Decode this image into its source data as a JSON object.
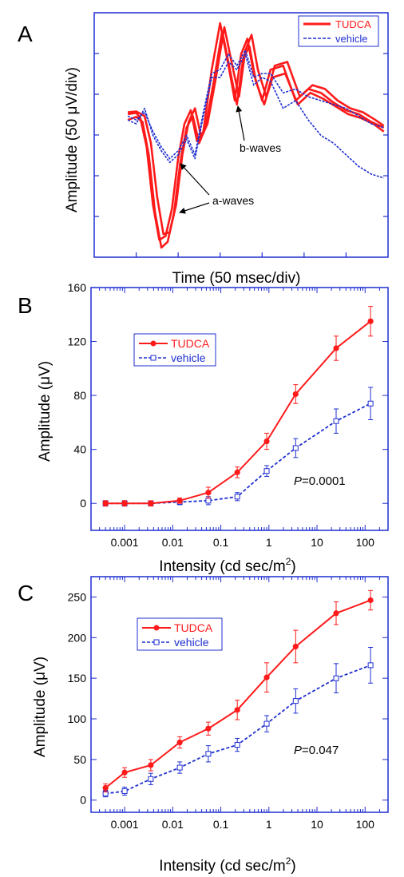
{
  "chart_data": [
    {
      "panel_label": "A",
      "type": "line",
      "xlabel": "Time (50 msec/div)",
      "ylabel": "Amplitude (50 μV/div)",
      "annotations": [
        "b-waves",
        "a-waves"
      ],
      "legend": {
        "placement": "top-right",
        "entries": [
          "TUDCA",
          "vehicle"
        ]
      },
      "colors": {
        "TUDCA": "#ff1a1a",
        "vehicle": "#1f2fd0"
      },
      "x_divisions": 7,
      "y_divisions": 6,
      "series": [
        {
          "name": "TUDCA",
          "style": "solid",
          "traces": [
            {
              "x": [
                0.8,
                1.0,
                1.1,
                1.25,
                1.4,
                1.55,
                1.7,
                1.85,
                2.0,
                2.15,
                2.3,
                2.45,
                2.6,
                2.8,
                3.0,
                3.2,
                3.35,
                3.5,
                3.65,
                3.8,
                4.0,
                4.2,
                4.5,
                4.8,
                5.1,
                5.4,
                5.7,
                6.0,
                6.3,
                6.6,
                6.9
              ],
              "y": [
                0.25,
                0.28,
                0.15,
                -0.6,
                -2.1,
                -3.0,
                -2.9,
                -2.2,
                -0.9,
                0.0,
                0.35,
                -0.45,
                -0.2,
                1.4,
                2.6,
                1.5,
                0.6,
                1.8,
                2.2,
                1.3,
                0.6,
                1.4,
                1.5,
                0.6,
                0.9,
                0.8,
                0.55,
                0.35,
                0.25,
                0.05,
                -0.1
              ]
            },
            {
              "x": [
                0.8,
                1.0,
                1.15,
                1.3,
                1.45,
                1.6,
                1.75,
                1.9,
                2.05,
                2.2,
                2.35,
                2.5,
                2.65,
                2.85,
                3.05,
                3.25,
                3.4,
                3.55,
                3.7,
                3.85,
                4.05,
                4.25,
                4.55,
                4.85,
                5.15,
                5.45,
                5.75,
                6.05,
                6.35,
                6.65,
                6.9
              ],
              "y": [
                0.1,
                0.18,
                0.05,
                -0.8,
                -2.3,
                -3.2,
                -3.05,
                -2.3,
                -1.0,
                -0.1,
                0.2,
                -0.5,
                -0.1,
                1.1,
                2.4,
                1.3,
                0.5,
                1.7,
                2.0,
                1.1,
                0.5,
                1.2,
                1.3,
                0.5,
                0.8,
                0.65,
                0.45,
                0.25,
                0.15,
                0.0,
                -0.2
              ]
            },
            {
              "x": [
                0.8,
                1.0,
                1.2,
                1.35,
                1.5,
                1.65,
                1.8,
                1.95,
                2.1,
                2.25,
                2.4,
                2.55,
                2.7,
                2.9,
                3.1,
                3.3,
                3.45,
                3.6,
                3.75,
                3.9,
                4.1,
                4.3,
                4.6,
                4.9,
                5.2,
                5.5,
                5.8,
                6.1,
                6.4,
                6.7,
                6.9
              ],
              "y": [
                0.3,
                0.32,
                0.2,
                -0.5,
                -1.9,
                -2.85,
                -2.8,
                -2.1,
                -0.8,
                0.05,
                0.4,
                -0.35,
                0.0,
                1.2,
                2.5,
                1.45,
                0.7,
                1.9,
                2.3,
                1.4,
                0.7,
                1.5,
                1.6,
                0.7,
                1.0,
                0.9,
                0.6,
                0.4,
                0.3,
                0.1,
                -0.05
              ]
            }
          ]
        },
        {
          "name": "vehicle",
          "style": "dashed",
          "traces": [
            {
              "x": [
                0.8,
                1.0,
                1.2,
                1.4,
                1.6,
                1.8,
                2.0,
                2.2,
                2.4,
                2.6,
                2.8,
                3.0,
                3.2,
                3.4,
                3.6,
                3.8,
                4.0,
                4.2,
                4.5,
                4.8,
                5.1,
                5.4,
                5.7,
                6.0,
                6.3,
                6.6,
                6.9
              ],
              "y": [
                0.1,
                0.0,
                0.4,
                -0.3,
                -0.7,
                -1.0,
                -0.8,
                -0.4,
                -0.9,
                0.2,
                1.2,
                1.2,
                1.6,
                1.4,
                1.8,
                1.0,
                1.2,
                1.1,
                0.4,
                0.6,
                0.1,
                -0.3,
                -0.5,
                -0.8,
                -1.1,
                -1.3,
                -1.4
              ]
            },
            {
              "x": [
                0.8,
                1.0,
                1.2,
                1.4,
                1.6,
                1.8,
                2.0,
                2.2,
                2.4,
                2.6,
                2.8,
                3.0,
                3.2,
                3.4,
                3.6,
                3.8,
                4.0,
                4.2,
                4.5,
                4.8,
                5.1,
                5.4,
                5.7,
                6.0,
                6.3,
                6.6,
                6.9
              ],
              "y": [
                0.2,
                0.1,
                0.3,
                -0.2,
                -0.6,
                -0.9,
                -0.7,
                -0.3,
                -0.8,
                0.3,
                1.3,
                1.4,
                1.8,
                1.5,
                1.9,
                1.2,
                1.3,
                1.3,
                0.8,
                0.9,
                0.7,
                0.6,
                0.5,
                0.4,
                0.2,
                0.0,
                -0.1
              ]
            }
          ]
        }
      ]
    },
    {
      "panel_label": "B",
      "type": "line",
      "xlabel": "Intensity (cd sec/m",
      "xlabel_superscript": "2",
      "xlabel_suffix": ")",
      "ylabel": "Amplitude (μV)",
      "x_scale": "log",
      "xlim": [
        0.0002,
        300
      ],
      "ylim": [
        -20,
        160
      ],
      "xtick_values": [
        0.001,
        0.01,
        0.1,
        1,
        10,
        100
      ],
      "xtick_labels": [
        "0.001",
        "0.01",
        "0.1",
        "1",
        "10",
        "100"
      ],
      "ytick_values": [
        0,
        40,
        80,
        120,
        160
      ],
      "ytick_labels": [
        "0",
        "40",
        "80",
        "120",
        "160"
      ],
      "legend": {
        "placement": "upper-left",
        "entries": [
          "TUDCA",
          "vehicle"
        ]
      },
      "annotation_italic": "P",
      "annotation_rest": "=0.0001",
      "x": [
        0.0004,
        0.001,
        0.0035,
        0.014,
        0.055,
        0.22,
        0.9,
        3.6,
        25,
        130
      ],
      "series": [
        {
          "name": "TUDCA",
          "color": "#ff1a1a",
          "marker": "filled-circle",
          "line": "solid",
          "values": [
            0,
            0,
            0,
            2,
            8,
            23,
            46,
            81,
            115,
            135
          ],
          "errors": [
            2,
            2,
            2,
            2,
            4,
            4,
            6,
            7,
            9,
            11
          ]
        },
        {
          "name": "vehicle",
          "color": "#1f2fd0",
          "marker": "open-square",
          "line": "dashed",
          "values": [
            0,
            0,
            0,
            1,
            2,
            5,
            24,
            41,
            61,
            74
          ],
          "errors": [
            2,
            2,
            1,
            2,
            3,
            3,
            4,
            7,
            9,
            12
          ]
        }
      ]
    },
    {
      "panel_label": "C",
      "type": "line",
      "xlabel": "Intensity (cd sec/m",
      "xlabel_superscript": "2",
      "xlabel_suffix": ")",
      "ylabel": "Amplitude (μV)",
      "x_scale": "log",
      "xlim": [
        0.0002,
        300
      ],
      "ylim": [
        -15,
        275
      ],
      "xtick_values": [
        0.001,
        0.01,
        0.1,
        1,
        10,
        100
      ],
      "xtick_labels": [
        "0.001",
        "0.01",
        "0.1",
        "1",
        "10",
        "100"
      ],
      "ytick_values": [
        0,
        50,
        100,
        150,
        200,
        250
      ],
      "ytick_labels": [
        "0",
        "50",
        "100",
        "150",
        "200",
        "250"
      ],
      "legend": {
        "placement": "upper-left",
        "entries": [
          "TUDCA",
          "vehicle"
        ]
      },
      "annotation_italic": "P",
      "annotation_rest": "=0.047",
      "x": [
        0.0004,
        0.001,
        0.0035,
        0.014,
        0.055,
        0.22,
        0.9,
        3.6,
        25,
        130
      ],
      "series": [
        {
          "name": "TUDCA",
          "color": "#ff1a1a",
          "marker": "filled-circle",
          "line": "solid",
          "values": [
            15,
            34,
            43,
            71,
            88,
            111,
            151,
            189,
            230,
            246
          ],
          "errors": [
            5,
            6,
            7,
            7,
            8,
            12,
            18,
            20,
            14,
            12
          ]
        },
        {
          "name": "vehicle",
          "color": "#1f2fd0",
          "marker": "open-square",
          "line": "dashed",
          "values": [
            8,
            11,
            26,
            40,
            57,
            68,
            94,
            122,
            150,
            166
          ],
          "errors": [
            4,
            5,
            7,
            7,
            10,
            8,
            10,
            15,
            18,
            22
          ]
        }
      ]
    }
  ]
}
